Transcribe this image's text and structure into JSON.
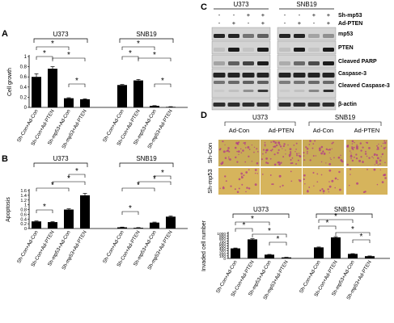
{
  "panels": {
    "A": "A",
    "B": "B",
    "C": "C",
    "D": "D"
  },
  "groups": {
    "left": "U373",
    "right": "SNB19"
  },
  "significance_marker": "*",
  "panel_c": {
    "sh_label": "Sh-mp53",
    "pten_label": "Ad-PTEN",
    "sh_signs": [
      "-",
      "-",
      "+",
      "+",
      "-",
      "-",
      "+",
      "+"
    ],
    "pten_signs": [
      "-",
      "+",
      "-",
      "+",
      "-",
      "+",
      "-",
      "+"
    ],
    "blot_labels": [
      "mp53",
      "PTEN",
      "Cleaved PARP",
      "Caspase-3",
      "Cleaved Caspase-3",
      "β-actin"
    ]
  },
  "panel_d_images": {
    "col_labels": [
      "Ad-Con",
      "Ad-PTEN",
      "Ad-Con",
      "Ad-PTEN"
    ],
    "row_labels": [
      "Sh-Con",
      "Sh-mp53"
    ],
    "colors": {
      "sh_con": "#c9ab57",
      "sh_mp53": "#d6b45c",
      "stain": "#b0388a"
    }
  },
  "chart_data": [
    {
      "panel": "A",
      "type": "bar",
      "categories": [
        "Sh-Con+Ad-Con",
        "Sh-Con+Ad-PTEN",
        "Sh-mp53+Ad-Con",
        "Sh-mp53+Ad-PTEN",
        "Sh-Con+Ad-Con",
        "Sh-Con+Ad-PTEN",
        "Sh-mp53+Ad-Con",
        "Sh-mp53+Ad-PTEN"
      ],
      "values": [
        0.6,
        0.76,
        0.18,
        0.16,
        0.44,
        0.53,
        0.03,
        0.01
      ],
      "errors": [
        0.06,
        0.04,
        0.01,
        0.01,
        0.01,
        0.02,
        0.005,
        0.005
      ],
      "ylabel": "Cell growth",
      "ylim": [
        0,
        1
      ],
      "yticks": [
        0,
        0.2,
        0.4,
        0.6,
        0.8,
        1
      ],
      "yticklabels": [
        "0",
        "0.2",
        "0.4",
        "0.6",
        "0.8",
        "1"
      ]
    },
    {
      "panel": "B",
      "type": "bar",
      "categories": [
        "Sh-Con+Ad-Con",
        "Sh-Con+Ad-PTEN",
        "Sh-mp53+Ad-Con",
        "Sh-mp53+Ad-PTEN",
        "Sh-Con+Ad-Con",
        "Sh-Con+Ad-PTEN",
        "Sh-mp53+Ad-Con",
        "Sh-mp53+Ad-PTEN"
      ],
      "values": [
        0.3,
        0.27,
        0.8,
        1.4,
        0.05,
        0.03,
        0.25,
        0.5
      ],
      "errors": [
        0.02,
        0.02,
        0.03,
        0.08,
        0.01,
        0.01,
        0.02,
        0.03
      ],
      "ylabel": "Apoptosis",
      "ylim": [
        0,
        1.6
      ],
      "yticks": [
        0,
        0.2,
        0.4,
        0.6,
        0.8,
        1,
        1.2,
        1.4,
        1.6
      ],
      "yticklabels": [
        "0",
        "0.2",
        "0.4",
        "0.6",
        "0.8",
        "1",
        "1.2",
        "1.4",
        "1.6"
      ]
    },
    {
      "panel": "D",
      "type": "bar",
      "categories": [
        "Sh-Con+Ad-Con",
        "Sh-Con+Ad-PTEN",
        "Sh-mp53+Ad-Con",
        "Sh-mp53+Ad-PTEN",
        "Sh-Con+Ad-Con",
        "Sh-Con+Ad-PTEN",
        "Sh-mp53+Ad-Con",
        "Sh-mp53+Ad-PTEN"
      ],
      "values": [
        400,
        760,
        150,
        40,
        440,
        840,
        180,
        90
      ],
      "errors": [
        15,
        25,
        10,
        5,
        15,
        30,
        10,
        8
      ],
      "ylabel": "Invaded cell number",
      "ylim": [
        0,
        1000
      ],
      "yticks": [
        0,
        100,
        200,
        300,
        400,
        500,
        600,
        700,
        800,
        900,
        1000
      ],
      "yticklabels": [
        "0",
        "100",
        "200",
        "300",
        "400",
        "500",
        "600",
        "700",
        "800",
        "900",
        "1000"
      ]
    }
  ]
}
